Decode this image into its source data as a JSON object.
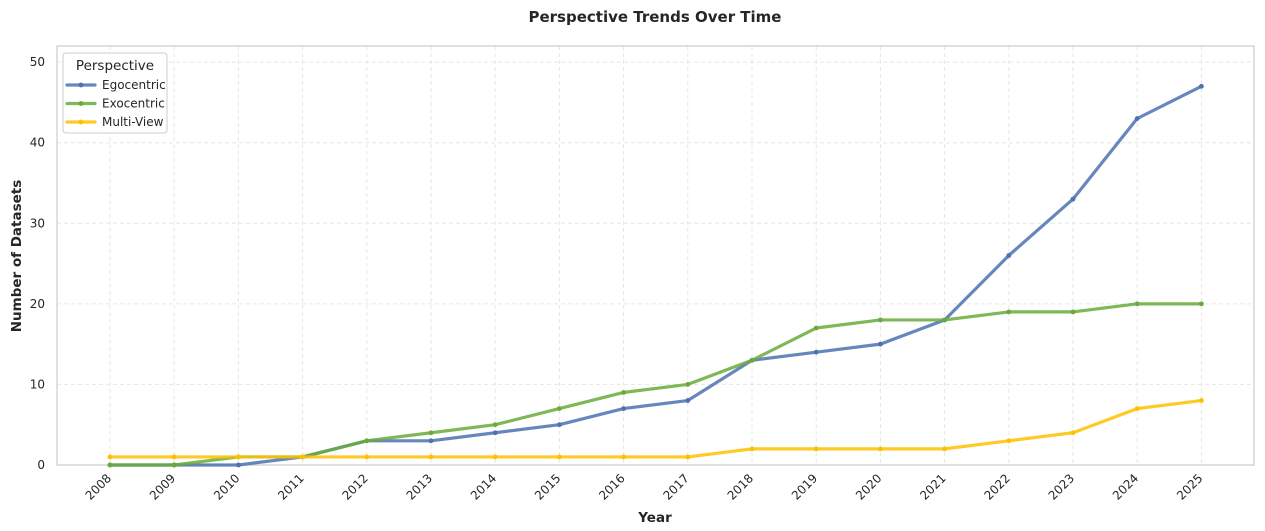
{
  "chart_data": {
    "type": "line",
    "title": "Perspective Trends Over Time",
    "xlabel": "Year",
    "ylabel": "Number of Datasets",
    "ylim": [
      0,
      52
    ],
    "yticks": [
      0,
      10,
      20,
      30,
      40,
      50
    ],
    "grid": true,
    "legend": {
      "title": "Perspective",
      "placement": "top-left"
    },
    "categories": [
      "2008",
      "2009",
      "2010",
      "2011",
      "2012",
      "2013",
      "2014",
      "2015",
      "2016",
      "2017",
      "2018",
      "2019",
      "2020",
      "2021",
      "2022",
      "2023",
      "2024",
      "2025"
    ],
    "series": [
      {
        "name": "Egocentric",
        "color": "#4c72b0",
        "values": [
          0,
          0,
          0,
          1,
          3,
          3,
          4,
          5,
          7,
          8,
          13,
          14,
          15,
          18,
          26,
          33,
          43,
          47
        ]
      },
      {
        "name": "Exocentric",
        "color": "#6aaa3a",
        "values": [
          0,
          0,
          1,
          1,
          3,
          4,
          5,
          7,
          9,
          10,
          13,
          17,
          18,
          18,
          19,
          19,
          20,
          20
        ]
      },
      {
        "name": "Multi-View",
        "color": "#ffc000",
        "values": [
          1,
          1,
          1,
          1,
          1,
          1,
          1,
          1,
          1,
          1,
          2,
          2,
          2,
          2,
          3,
          4,
          7,
          8
        ]
      }
    ]
  }
}
